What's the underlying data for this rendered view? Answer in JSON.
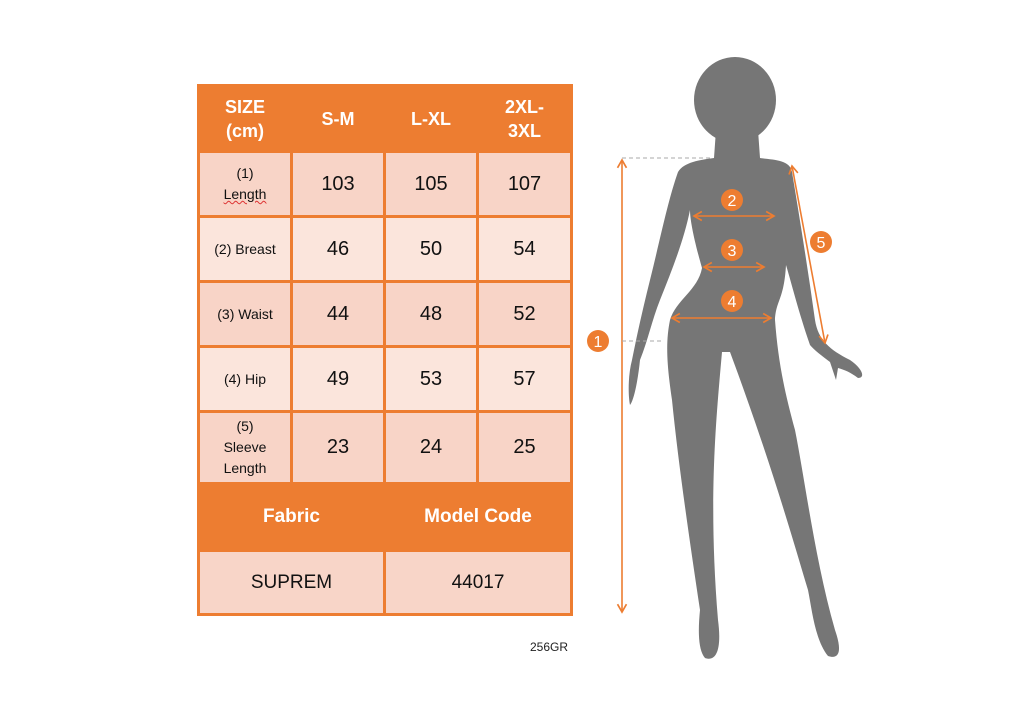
{
  "table": {
    "header": [
      "SIZE (cm)",
      "S-M",
      "L-XL",
      "2XL-3XL"
    ],
    "header_lines": [
      [
        "SIZE",
        "(cm)"
      ],
      [
        "S-M"
      ],
      [
        "L-XL"
      ],
      [
        "2XL-",
        "3XL"
      ]
    ],
    "rows": [
      {
        "label_lines": [
          "(1)",
          "Length"
        ],
        "values": [
          "103",
          "105",
          "107"
        ]
      },
      {
        "label_lines": [
          "(2) Breast"
        ],
        "values": [
          "46",
          "50",
          "54"
        ]
      },
      {
        "label_lines": [
          "(3) Waist"
        ],
        "values": [
          "44",
          "48",
          "52"
        ]
      },
      {
        "label_lines": [
          "(4) Hip"
        ],
        "values": [
          "49",
          "53",
          "57"
        ]
      },
      {
        "label_lines": [
          "(5)",
          "Sleeve",
          "Length"
        ],
        "values": [
          "23",
          "24",
          "25"
        ]
      }
    ],
    "fabric_label": "Fabric",
    "model_code_label": "Model Code",
    "fabric_value": "SUPREM",
    "model_code_value": "44017"
  },
  "code_note": "256GR",
  "figure": {
    "markers": [
      "1",
      "2",
      "3",
      "4",
      "5"
    ],
    "accent_color": "#ED7D31",
    "silhouette_color": "#767676"
  }
}
